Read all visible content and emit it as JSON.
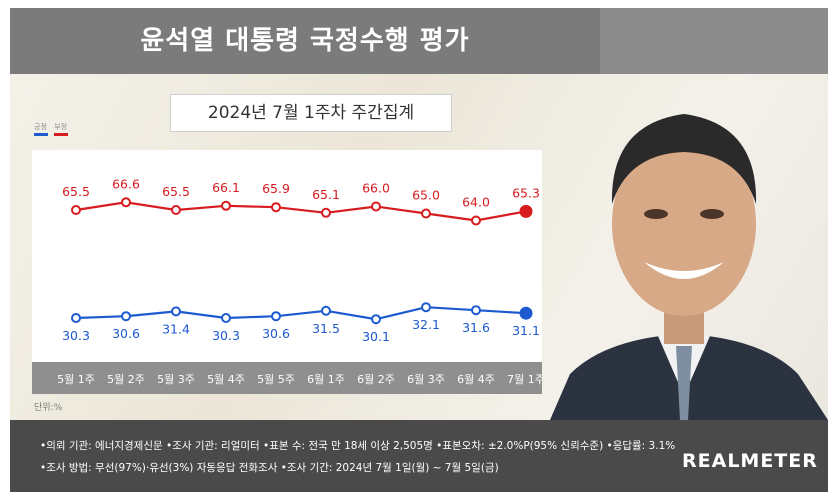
{
  "title": "윤석열 대통령 국정수행 평가",
  "subtitle": "2024년 7월 1주차 주간집계",
  "unit": "단위:%",
  "chart_data": {
    "type": "line",
    "categories": [
      "5월 1주",
      "5월 2주",
      "5월 3주",
      "5월 4주",
      "5월 5주",
      "6월 1주",
      "6월 2주",
      "6월 3주",
      "6월 4주",
      "7월 1주"
    ],
    "series": [
      {
        "name": "부정",
        "color": "#d71c20",
        "values": [
          65.5,
          66.6,
          65.5,
          66.1,
          65.9,
          65.1,
          66.0,
          65.0,
          64.0,
          65.3
        ]
      },
      {
        "name": "긍정",
        "color": "#1d5ad0",
        "values": [
          30.3,
          30.6,
          31.4,
          30.3,
          30.6,
          31.5,
          30.1,
          32.1,
          31.6,
          31.1
        ]
      }
    ],
    "legend": "top-left",
    "grid": false
  },
  "footer": {
    "line1": "•의뢰 기관: 에너지경제신문  •조사 기관: 리얼미터  •표본 수: 전국 만 18세 이상 2,505명  •표본오차: ±2.0%P(95% 신뢰수준)  •응답률: 3.1%",
    "line2": "•조사 방법: 무선(97%)·유선(3%) 자동응답 전화조사  •조사 기간: 2024년 7월 1일(월) ~ 7월 5일(금)",
    "logo": "REALMETER"
  }
}
